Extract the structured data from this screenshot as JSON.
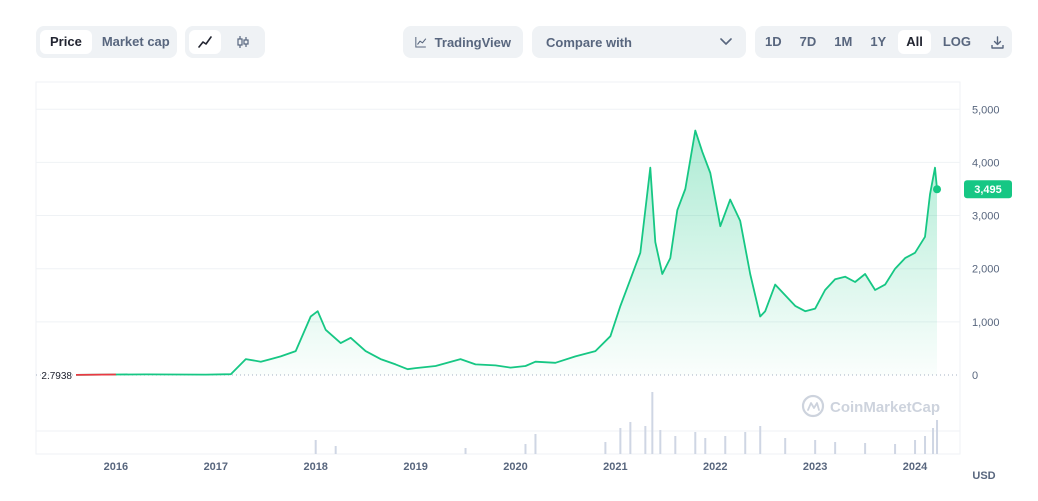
{
  "toolbar": {
    "type_options": [
      {
        "label": "Price",
        "active": true
      },
      {
        "label": "Market cap",
        "active": false
      }
    ],
    "tradingview_label": "TradingView",
    "compare_label": "Compare with",
    "range_options": [
      {
        "label": "1D",
        "active": false
      },
      {
        "label": "7D",
        "active": false
      },
      {
        "label": "1M",
        "active": false
      },
      {
        "label": "1Y",
        "active": false
      },
      {
        "label": "All",
        "active": true
      },
      {
        "label": "LOG",
        "active": false
      }
    ]
  },
  "watermark": "CoinMarketCap",
  "colors": {
    "line_up": "#16c784",
    "line_down": "#ea3943",
    "badge": "#16c784",
    "grid": "#eff2f5",
    "volume": "#cfd6e4"
  },
  "chart_data": {
    "type": "area",
    "ylim": [
      0,
      5000
    ],
    "y_ticks": [
      0,
      1000,
      2000,
      3000,
      4000,
      5000
    ],
    "y_tick_labels": [
      "0",
      "1,000",
      "2,000",
      "3,000",
      "4,000",
      "5,000"
    ],
    "x_tick_labels": [
      "2016",
      "2017",
      "2018",
      "2019",
      "2020",
      "2021",
      "2022",
      "2023",
      "2024"
    ],
    "x_ticks": [
      2016,
      2017,
      2018,
      2019,
      2020,
      2021,
      2022,
      2023,
      2024
    ],
    "start_label": "2.7938",
    "start_value": 2.7938,
    "current_label": "3,495",
    "current_value": 3495,
    "currency_label": "USD",
    "series": [
      {
        "x": [
          2015.6,
          2016.0,
          2016.3,
          2016.6,
          2016.9,
          2017.15,
          2017.3,
          2017.45,
          2017.55,
          2017.65,
          2017.8,
          2017.95,
          2018.02,
          2018.1,
          2018.25,
          2018.35,
          2018.5,
          2018.65,
          2018.8,
          2018.92,
          2019.0,
          2019.2,
          2019.45,
          2019.6,
          2019.8,
          2019.95,
          2020.1,
          2020.2,
          2020.4,
          2020.6,
          2020.8,
          2020.95,
          2021.05,
          2021.15,
          2021.25,
          2021.35,
          2021.4,
          2021.47,
          2021.55,
          2021.62,
          2021.7,
          2021.8,
          2021.87,
          2021.95,
          2022.05,
          2022.15,
          2022.25,
          2022.35,
          2022.45,
          2022.5,
          2022.6,
          2022.7,
          2022.8,
          2022.9,
          2023.0,
          2023.1,
          2023.2,
          2023.3,
          2023.4,
          2023.5,
          2023.6,
          2023.7,
          2023.8,
          2023.9,
          2024.0,
          2024.1,
          2024.15,
          2024.2,
          2024.22
        ],
        "values": [
          2.8,
          10,
          12,
          10,
          8,
          15,
          300,
          250,
          300,
          350,
          450,
          1100,
          1200,
          850,
          600,
          700,
          450,
          300,
          200,
          110,
          130,
          170,
          300,
          200,
          180,
          140,
          170,
          250,
          230,
          350,
          450,
          730,
          1300,
          1800,
          2300,
          3900,
          2500,
          1900,
          2200,
          3100,
          3500,
          4600,
          4200,
          3800,
          2800,
          3300,
          2900,
          1900,
          1100,
          1200,
          1700,
          1500,
          1300,
          1200,
          1250,
          1600,
          1800,
          1850,
          1750,
          1900,
          1600,
          1700,
          2000,
          2200,
          2300,
          2600,
          3400,
          3900,
          3495
        ]
      }
    ],
    "volume": {
      "x": [
        2018.0,
        2018.2,
        2019.5,
        2020.1,
        2020.2,
        2020.9,
        2021.05,
        2021.15,
        2021.3,
        2021.37,
        2021.45,
        2021.6,
        2021.8,
        2021.9,
        2022.1,
        2022.3,
        2022.45,
        2022.7,
        2023.0,
        2023.2,
        2023.5,
        2023.8,
        2024.0,
        2024.1,
        2024.18,
        2024.22
      ],
      "values": [
        14,
        8,
        6,
        10,
        20,
        12,
        26,
        32,
        28,
        62,
        24,
        18,
        22,
        16,
        18,
        22,
        28,
        16,
        14,
        12,
        11,
        10,
        14,
        18,
        26,
        34
      ]
    }
  }
}
